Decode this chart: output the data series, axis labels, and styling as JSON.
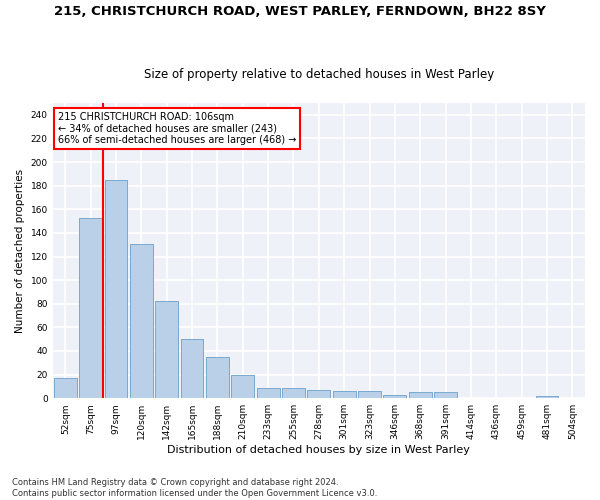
{
  "title": "215, CHRISTCHURCH ROAD, WEST PARLEY, FERNDOWN, BH22 8SY",
  "subtitle": "Size of property relative to detached houses in West Parley",
  "xlabel": "Distribution of detached houses by size in West Parley",
  "ylabel": "Number of detached properties",
  "categories": [
    "52sqm",
    "75sqm",
    "97sqm",
    "120sqm",
    "142sqm",
    "165sqm",
    "188sqm",
    "210sqm",
    "233sqm",
    "255sqm",
    "278sqm",
    "301sqm",
    "323sqm",
    "346sqm",
    "368sqm",
    "391sqm",
    "414sqm",
    "436sqm",
    "459sqm",
    "481sqm",
    "504sqm"
  ],
  "values": [
    17,
    153,
    185,
    131,
    82,
    50,
    35,
    20,
    9,
    9,
    7,
    6,
    6,
    3,
    5,
    5,
    0,
    0,
    0,
    2,
    0
  ],
  "bar_color": "#bad0e8",
  "bar_edgecolor": "#6aa0cc",
  "vline_x_index": 2,
  "vline_color": "red",
  "annotation_text": "215 CHRISTCHURCH ROAD: 106sqm\n← 34% of detached houses are smaller (243)\n66% of semi-detached houses are larger (468) →",
  "annotation_box_color": "white",
  "annotation_box_edgecolor": "red",
  "ylim": [
    0,
    250
  ],
  "yticks": [
    0,
    20,
    40,
    60,
    80,
    100,
    120,
    140,
    160,
    180,
    200,
    220,
    240
  ],
  "footer": "Contains HM Land Registry data © Crown copyright and database right 2024.\nContains public sector information licensed under the Open Government Licence v3.0.",
  "background_color": "#eef2f8",
  "grid_color": "white",
  "title_fontsize": 9.5,
  "subtitle_fontsize": 8.5,
  "ylabel_fontsize": 7.5,
  "xlabel_fontsize": 8,
  "tick_fontsize": 6.5,
  "annot_fontsize": 7,
  "footer_fontsize": 6
}
